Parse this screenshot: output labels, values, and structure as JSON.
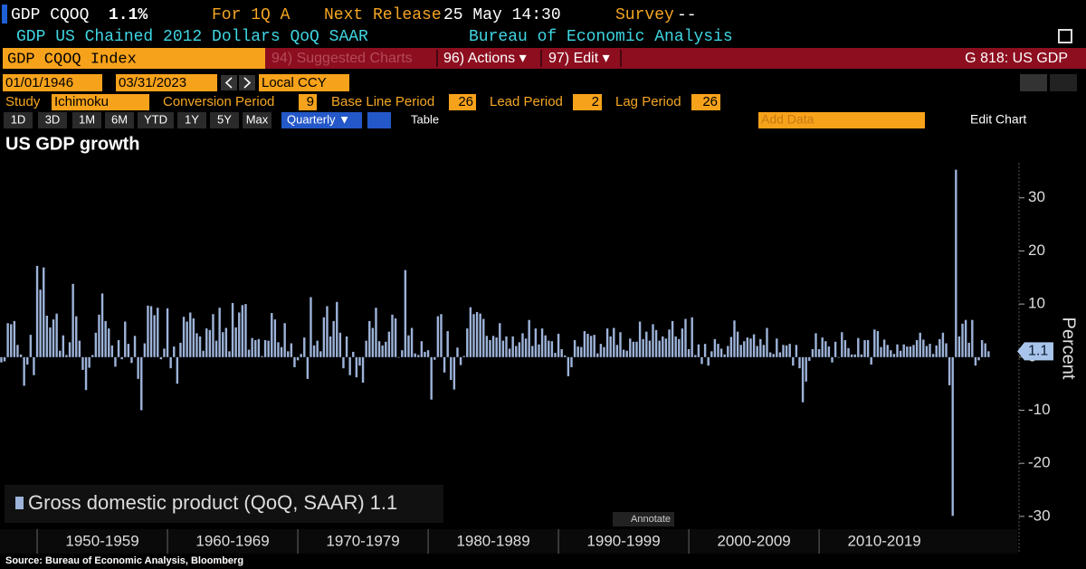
{
  "header": {
    "ticker": "GDP CQOQ",
    "last": "1.1%",
    "period": "For 1Q A",
    "next_release_label": "Next Release",
    "next_release": "25 May 14:30",
    "survey_label": "Survey",
    "survey": "--",
    "description": "GDP US Chained 2012 Dollars QoQ SAAR",
    "agency": "Bureau of Economic Analysis"
  },
  "command": {
    "security": "GDP CQOQ Index",
    "suggested": "94) Suggested Charts",
    "actions": "96) Actions ▾",
    "edit": "97) Edit ▾",
    "page": "G 818: US GDP"
  },
  "controls": {
    "start": "01/01/1946",
    "end": "03/31/2023",
    "currency": "Local CCY",
    "study_label": "Study",
    "study": "Ichimoku",
    "params": [
      {
        "label": "Conversion Period",
        "value": "9"
      },
      {
        "label": "Base Line Period",
        "value": "26"
      },
      {
        "label": "Lead Period",
        "value": "2"
      },
      {
        "label": "Lag Period",
        "value": "26"
      }
    ]
  },
  "toolbar": {
    "ranges": [
      "1D",
      "3D",
      "1M",
      "6M",
      "YTD",
      "1Y",
      "5Y",
      "Max"
    ],
    "frequency": "Quarterly ▼",
    "table": "Table",
    "add_data": "Add Data",
    "edit_chart": "Edit Chart",
    "annotate": "Annotate"
  },
  "chart_data": {
    "type": "bar",
    "title": "US GDP growth",
    "y_label": "Percent",
    "source": "Source: Bureau of Economic Analysis, Bloomberg",
    "xlim": [
      1947.15,
      2025.2
    ],
    "xticks": [
      {
        "value": 1950,
        "label": "1950-1959"
      },
      {
        "value": 1960,
        "label": "1960-1969"
      },
      {
        "value": 1970,
        "label": "1970-1979"
      },
      {
        "value": 1980,
        "label": "1980-1989"
      },
      {
        "value": 1990,
        "label": "1990-1999"
      },
      {
        "value": 2000,
        "label": "2000-2009"
      },
      {
        "value": 2010,
        "label": "2010-2019"
      }
    ],
    "ylim": [
      -31.9,
      36.6
    ],
    "yticks": [
      -30,
      -20,
      -10,
      0,
      10,
      20,
      30
    ],
    "grid": false,
    "series": [
      {
        "name": "Gross domestic product (QoQ, SAAR)",
        "color": "#9db3d9",
        "x": [
          1947.25,
          1947.5,
          1947.75,
          1948,
          1948.25,
          1948.5,
          1948.75,
          1949,
          1949.25,
          1949.5,
          1949.75,
          1950,
          1950.25,
          1950.5,
          1950.75,
          1951,
          1951.25,
          1951.5,
          1951.75,
          1952,
          1952.25,
          1952.5,
          1952.75,
          1953,
          1953.25,
          1953.5,
          1953.75,
          1954,
          1954.25,
          1954.5,
          1954.75,
          1955,
          1955.25,
          1955.5,
          1955.75,
          1956,
          1956.25,
          1956.5,
          1956.75,
          1957,
          1957.25,
          1957.5,
          1957.75,
          1958,
          1958.25,
          1958.5,
          1958.75,
          1959,
          1959.25,
          1959.5,
          1959.75,
          1960,
          1960.25,
          1960.5,
          1960.75,
          1961,
          1961.25,
          1961.5,
          1961.75,
          1962,
          1962.25,
          1962.5,
          1962.75,
          1963,
          1963.25,
          1963.5,
          1963.75,
          1964,
          1964.25,
          1964.5,
          1964.75,
          1965,
          1965.25,
          1965.5,
          1965.75,
          1966,
          1966.25,
          1966.5,
          1966.75,
          1967,
          1967.25,
          1967.5,
          1967.75,
          1968,
          1968.25,
          1968.5,
          1968.75,
          1969,
          1969.25,
          1969.5,
          1969.75,
          1970,
          1970.25,
          1970.5,
          1970.75,
          1971,
          1971.25,
          1971.5,
          1971.75,
          1972,
          1972.25,
          1972.5,
          1972.75,
          1973,
          1973.25,
          1973.5,
          1973.75,
          1974,
          1974.25,
          1974.5,
          1974.75,
          1975,
          1975.25,
          1975.5,
          1975.75,
          1976,
          1976.25,
          1976.5,
          1976.75,
          1977,
          1977.25,
          1977.5,
          1977.75,
          1978,
          1978.25,
          1978.5,
          1978.75,
          1979,
          1979.25,
          1979.5,
          1979.75,
          1980,
          1980.25,
          1980.5,
          1980.75,
          1981,
          1981.25,
          1981.5,
          1981.75,
          1982,
          1982.25,
          1982.5,
          1982.75,
          1983,
          1983.25,
          1983.5,
          1983.75,
          1984,
          1984.25,
          1984.5,
          1984.75,
          1985,
          1985.25,
          1985.5,
          1985.75,
          1986,
          1986.25,
          1986.5,
          1986.75,
          1987,
          1987.25,
          1987.5,
          1987.75,
          1988,
          1988.25,
          1988.5,
          1988.75,
          1989,
          1989.25,
          1989.5,
          1989.75,
          1990,
          1990.25,
          1990.5,
          1990.75,
          1991,
          1991.25,
          1991.5,
          1991.75,
          1992,
          1992.25,
          1992.5,
          1992.75,
          1993,
          1993.25,
          1993.5,
          1993.75,
          1994,
          1994.25,
          1994.5,
          1994.75,
          1995,
          1995.25,
          1995.5,
          1995.75,
          1996,
          1996.25,
          1996.5,
          1996.75,
          1997,
          1997.25,
          1997.5,
          1997.75,
          1998,
          1998.25,
          1998.5,
          1998.75,
          1999,
          1999.25,
          1999.5,
          1999.75,
          2000,
          2000.25,
          2000.5,
          2000.75,
          2001,
          2001.25,
          2001.5,
          2001.75,
          2002,
          2002.25,
          2002.5,
          2002.75,
          2003,
          2003.25,
          2003.5,
          2003.75,
          2004,
          2004.25,
          2004.5,
          2004.75,
          2005,
          2005.25,
          2005.5,
          2005.75,
          2006,
          2006.25,
          2006.5,
          2006.75,
          2007,
          2007.25,
          2007.5,
          2007.75,
          2008,
          2008.25,
          2008.5,
          2008.75,
          2009,
          2009.25,
          2009.5,
          2009.75,
          2010,
          2010.25,
          2010.5,
          2010.75,
          2011,
          2011.25,
          2011.5,
          2011.75,
          2012,
          2012.25,
          2012.5,
          2012.75,
          2013,
          2013.25,
          2013.5,
          2013.75,
          2014,
          2014.25,
          2014.5,
          2014.75,
          2015,
          2015.25,
          2015.5,
          2015.75,
          2016,
          2016.25,
          2016.5,
          2016.75,
          2017,
          2017.25,
          2017.5,
          2017.75,
          2018,
          2018.25,
          2018.5,
          2018.75,
          2019,
          2019.25,
          2019.5,
          2019.75,
          2020,
          2020.25,
          2020.5,
          2020.75,
          2021,
          2021.25,
          2021.5,
          2021.75,
          2022,
          2022.25,
          2022.5,
          2022.75,
          2023
        ],
        "values": [
          -1.0,
          -0.8,
          6.4,
          6.2,
          6.8,
          2.3,
          0.5,
          -5.4,
          -1.4,
          4.2,
          -3.4,
          17.2,
          12.7,
          16.9,
          7.8,
          5.6,
          7.1,
          8.2,
          1.2,
          4.1,
          0.4,
          2.8,
          13.8,
          7.7,
          3.1,
          -2.4,
          -6.2,
          -2.0,
          0.4,
          4.6,
          8.0,
          12.0,
          6.8,
          5.4,
          2.2,
          -1.8,
          3.2,
          -0.4,
          6.7,
          2.5,
          -1.1,
          4.0,
          -4.1,
          -10.0,
          2.6,
          9.7,
          9.6,
          7.9,
          9.3,
          -0.4,
          1.6,
          9.2,
          -2.1,
          2.0,
          -5.0,
          2.7,
          7.6,
          6.7,
          8.4,
          7.3,
          4.5,
          3.9,
          1.2,
          5.4,
          5.1,
          8.1,
          3.1,
          9.3,
          4.7,
          5.5,
          1.1,
          10.2,
          5.6,
          8.4,
          9.8,
          10.0,
          1.4,
          3.6,
          3.2,
          3.4,
          0.2,
          3.2,
          3.1,
          8.3,
          7.1,
          2.8,
          1.9,
          6.4,
          1.1,
          2.6,
          -1.9,
          -0.6,
          0.6,
          3.7,
          -4.1,
          11.3,
          2.2,
          3.1,
          1.1,
          7.5,
          9.6,
          3.9,
          6.8,
          10.4,
          4.6,
          -2.1,
          3.9,
          -3.4,
          1.0,
          -3.8,
          -1.6,
          -4.8,
          3.1,
          6.8,
          5.5,
          9.3,
          3.0,
          2.2,
          2.9,
          4.8,
          8.0,
          7.3,
          0.0,
          1.3,
          16.4,
          4.1,
          5.5,
          0.7,
          0.4,
          3.0,
          1.0,
          1.3,
          -8.0,
          -0.5,
          7.7,
          8.1,
          -2.9,
          4.9,
          -4.3,
          -6.1,
          1.8,
          -1.5,
          0.2,
          5.4,
          9.4,
          8.1,
          8.5,
          8.2,
          7.2,
          4.0,
          3.2,
          4.0,
          3.7,
          6.4,
          3.1,
          3.9,
          1.6,
          3.9,
          2.1,
          2.8,
          4.5,
          3.5,
          7.0,
          2.1,
          5.4,
          2.4,
          5.4,
          4.1,
          3.1,
          3.0,
          0.8,
          4.4,
          1.5,
          0.3,
          -3.6,
          -1.9,
          3.2,
          2.0,
          1.9,
          4.9,
          4.4,
          4.0,
          4.2,
          0.7,
          2.5,
          1.9,
          5.4,
          3.9,
          5.5,
          2.3,
          4.7,
          1.4,
          1.2,
          3.5,
          2.9,
          2.9,
          6.7,
          3.4,
          4.8,
          3.1,
          6.2,
          5.1,
          3.1,
          3.9,
          3.5,
          5.2,
          6.8,
          3.9,
          3.4,
          5.4,
          7.2,
          1.5,
          7.5,
          0.4,
          2.4,
          -1.3,
          2.5,
          -1.6,
          1.1,
          3.4,
          2.5,
          1.6,
          0.5,
          2.1,
          3.8,
          6.9,
          4.8,
          2.3,
          3.0,
          3.7,
          3.5,
          4.3,
          2.1,
          3.4,
          2.3,
          5.5,
          0.9,
          0.6,
          3.5,
          0.9,
          2.3,
          2.2,
          2.5,
          -1.6,
          2.3,
          -2.1,
          -8.5,
          -4.6,
          -0.7,
          1.5,
          4.5,
          1.5,
          3.7,
          3.0,
          2.0,
          -1.0,
          2.9,
          -0.1,
          4.7,
          3.2,
          1.7,
          0.5,
          0.5,
          3.6,
          0.5,
          3.2,
          3.2,
          -1.4,
          5.2,
          4.9,
          1.9,
          3.3,
          2.3,
          1.3,
          0.6,
          2.4,
          1.2,
          2.4,
          2.0,
          2.0,
          2.3,
          3.2,
          4.6,
          3.3,
          2.1,
          2.5,
          0.6,
          2.2,
          3.4,
          4.6,
          2.6,
          -5.3,
          -29.9,
          35.3,
          3.9,
          6.3,
          7.0,
          2.7,
          7.0,
          -1.6,
          -0.6,
          3.2,
          2.6,
          1.1
        ]
      }
    ]
  }
}
